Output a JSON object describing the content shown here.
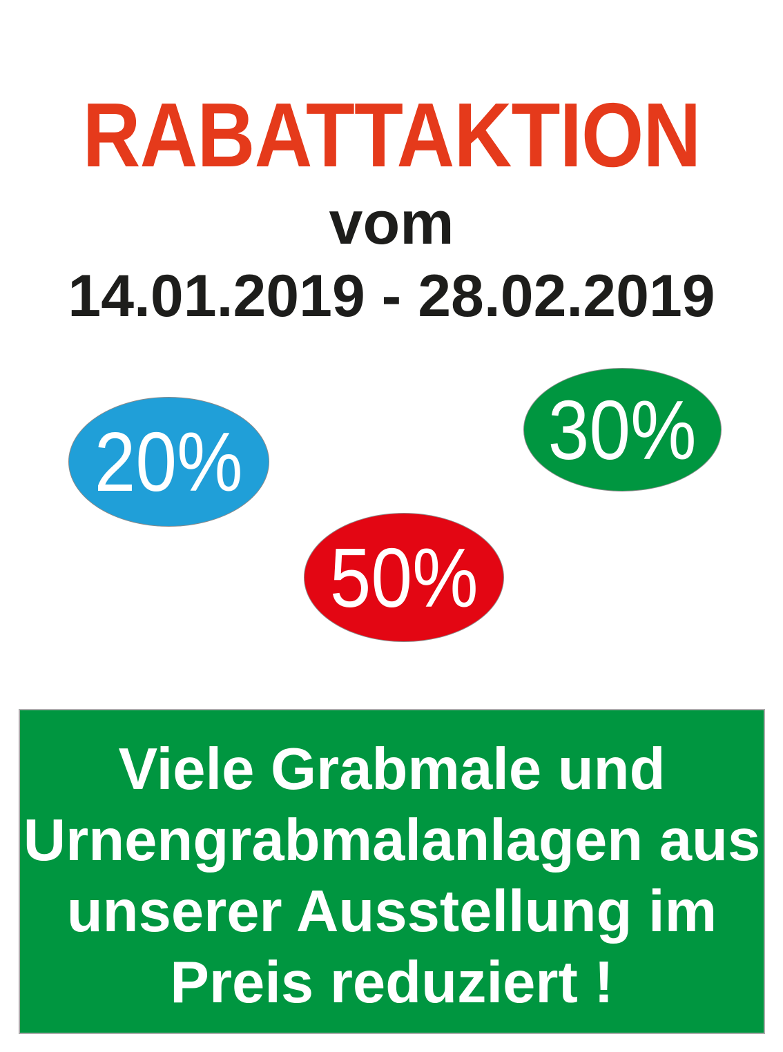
{
  "poster": {
    "title": "RABATTAKTION",
    "title_color": "#e53a1b",
    "subtitle": "vom",
    "date_range": "14.01.2019 - 28.02.2019",
    "text_color": "#1d1d1b",
    "badges": [
      {
        "id": "discount-badge-blue",
        "label": "20%",
        "color": "#209fd8"
      },
      {
        "id": "discount-badge-green",
        "label": "30%",
        "color": "#009640"
      },
      {
        "id": "discount-badge-red",
        "label": "50%",
        "color": "#e30613"
      }
    ],
    "banner": {
      "background": "#009640",
      "text_color": "#ffffff",
      "lines": [
        "Viele Grabmale und",
        "Urnengrabmalanlagen aus",
        "unserer Ausstellung im",
        "Preis reduziert !"
      ]
    }
  }
}
